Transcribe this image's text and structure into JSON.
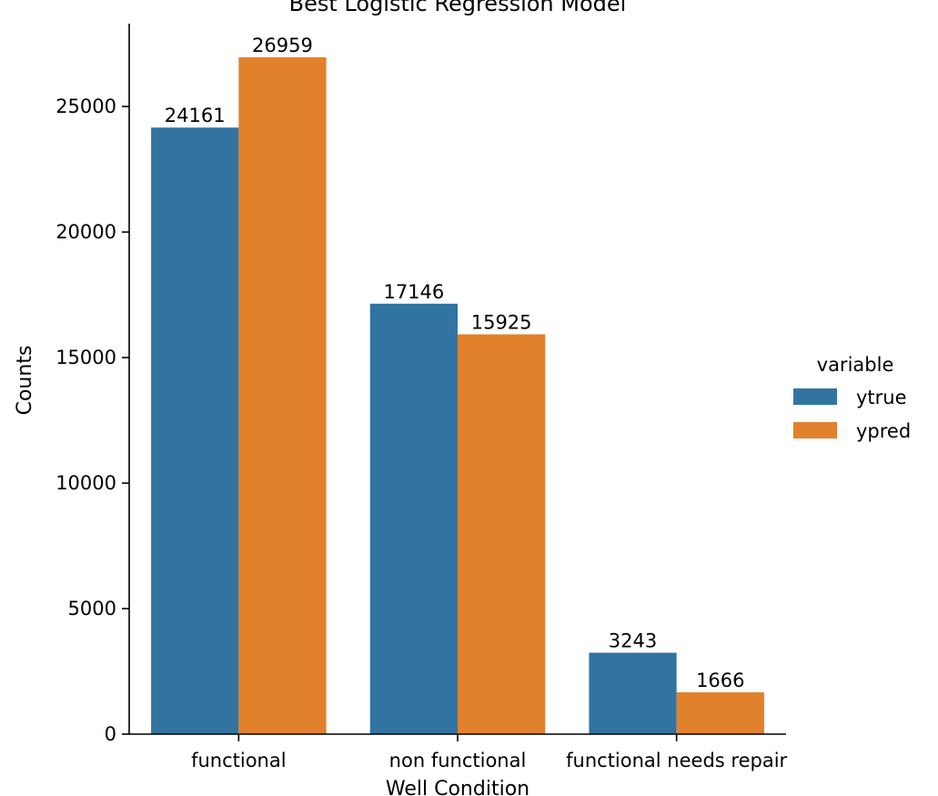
{
  "chart_data": {
    "type": "bar",
    "title": "Best Logistic Regression Model",
    "xlabel": "Well Condition",
    "ylabel": "Counts",
    "categories": [
      "functional",
      "non functional",
      "functional needs repair"
    ],
    "series": [
      {
        "name": "ytrue",
        "color": "#3274a1",
        "values": [
          24161,
          17146,
          3243
        ]
      },
      {
        "name": "ypred",
        "color": "#e1812c",
        "values": [
          26959,
          15925,
          1666
        ]
      }
    ],
    "ylim": [
      0,
      28300
    ],
    "yticks": [
      0,
      5000,
      10000,
      15000,
      20000,
      25000
    ],
    "grid": false,
    "legend": {
      "title": "variable",
      "placement": "right"
    }
  }
}
